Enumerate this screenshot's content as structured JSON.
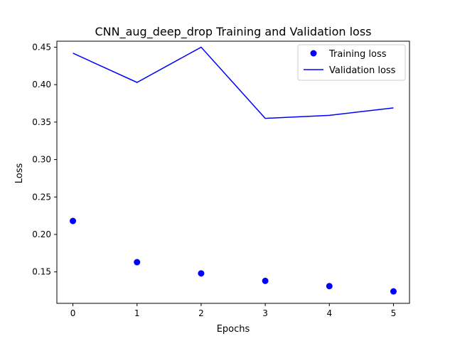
{
  "chart_data": {
    "type": "line",
    "title": "CNN_aug_deep_drop Training and Validation loss",
    "xlabel": "Epochs",
    "ylabel": "Loss",
    "x": [
      0,
      1,
      2,
      3,
      4,
      5
    ],
    "xticks": [
      "0",
      "1",
      "2",
      "3",
      "4",
      "5"
    ],
    "yticks": [
      "0.15",
      "0.20",
      "0.25",
      "0.30",
      "0.35",
      "0.40",
      "0.45"
    ],
    "xlim": [
      -0.25,
      5.25
    ],
    "ylim": [
      0.108,
      0.458
    ],
    "grid": false,
    "legend_position": "top-right",
    "series": [
      {
        "name": "Training loss",
        "style": "markers",
        "color": "#0000ff",
        "values": [
          0.218,
          0.163,
          0.148,
          0.138,
          0.131,
          0.124
        ]
      },
      {
        "name": "Validation loss",
        "style": "line",
        "color": "#0000ff",
        "values": [
          0.442,
          0.403,
          0.45,
          0.355,
          0.359,
          0.369
        ]
      }
    ]
  }
}
